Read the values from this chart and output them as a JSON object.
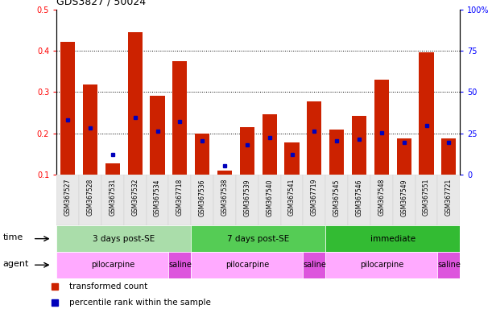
{
  "title": "GDS3827 / 50024",
  "samples": [
    "GSM367527",
    "GSM367528",
    "GSM367531",
    "GSM367532",
    "GSM367534",
    "GSM367718",
    "GSM367536",
    "GSM367538",
    "GSM367539",
    "GSM367540",
    "GSM367541",
    "GSM367719",
    "GSM367545",
    "GSM367546",
    "GSM367548",
    "GSM367549",
    "GSM367551",
    "GSM367721"
  ],
  "red_values": [
    0.422,
    0.318,
    0.128,
    0.445,
    0.29,
    0.375,
    0.2,
    0.11,
    0.215,
    0.245,
    0.178,
    0.278,
    0.208,
    0.243,
    0.33,
    0.188,
    0.395,
    0.187
  ],
  "blue_values": [
    0.232,
    0.212,
    0.148,
    0.238,
    0.205,
    0.228,
    0.182,
    0.122,
    0.172,
    0.19,
    0.148,
    0.205,
    0.182,
    0.185,
    0.202,
    0.178,
    0.218,
    0.178
  ],
  "time_groups": [
    {
      "label": "3 days post-SE",
      "start": 0,
      "end": 5,
      "color": "#aaddaa"
    },
    {
      "label": "7 days post-SE",
      "start": 6,
      "end": 11,
      "color": "#55cc55"
    },
    {
      "label": "immediate",
      "start": 12,
      "end": 17,
      "color": "#33bb33"
    }
  ],
  "agent_groups": [
    {
      "label": "pilocarpine",
      "start": 0,
      "end": 4,
      "color": "#ffaaff"
    },
    {
      "label": "saline",
      "start": 5,
      "end": 5,
      "color": "#dd55dd"
    },
    {
      "label": "pilocarpine",
      "start": 6,
      "end": 10,
      "color": "#ffaaff"
    },
    {
      "label": "saline",
      "start": 11,
      "end": 11,
      "color": "#dd55dd"
    },
    {
      "label": "pilocarpine",
      "start": 12,
      "end": 16,
      "color": "#ffaaff"
    },
    {
      "label": "saline",
      "start": 17,
      "end": 17,
      "color": "#dd55dd"
    }
  ],
  "ylim_left": [
    0.1,
    0.5
  ],
  "ylim_right": [
    0,
    100
  ],
  "yticks_left": [
    0.1,
    0.2,
    0.3,
    0.4,
    0.5
  ],
  "yticks_right_vals": [
    0,
    25,
    50,
    75,
    100
  ],
  "yticks_right_labels": [
    "0",
    "25",
    "50",
    "75",
    "100%"
  ],
  "bar_color": "#cc2200",
  "blue_color": "#0000bb",
  "legend_red": "transformed count",
  "legend_blue": "percentile rank within the sample",
  "baseline": 0.1,
  "n_bars": 18
}
